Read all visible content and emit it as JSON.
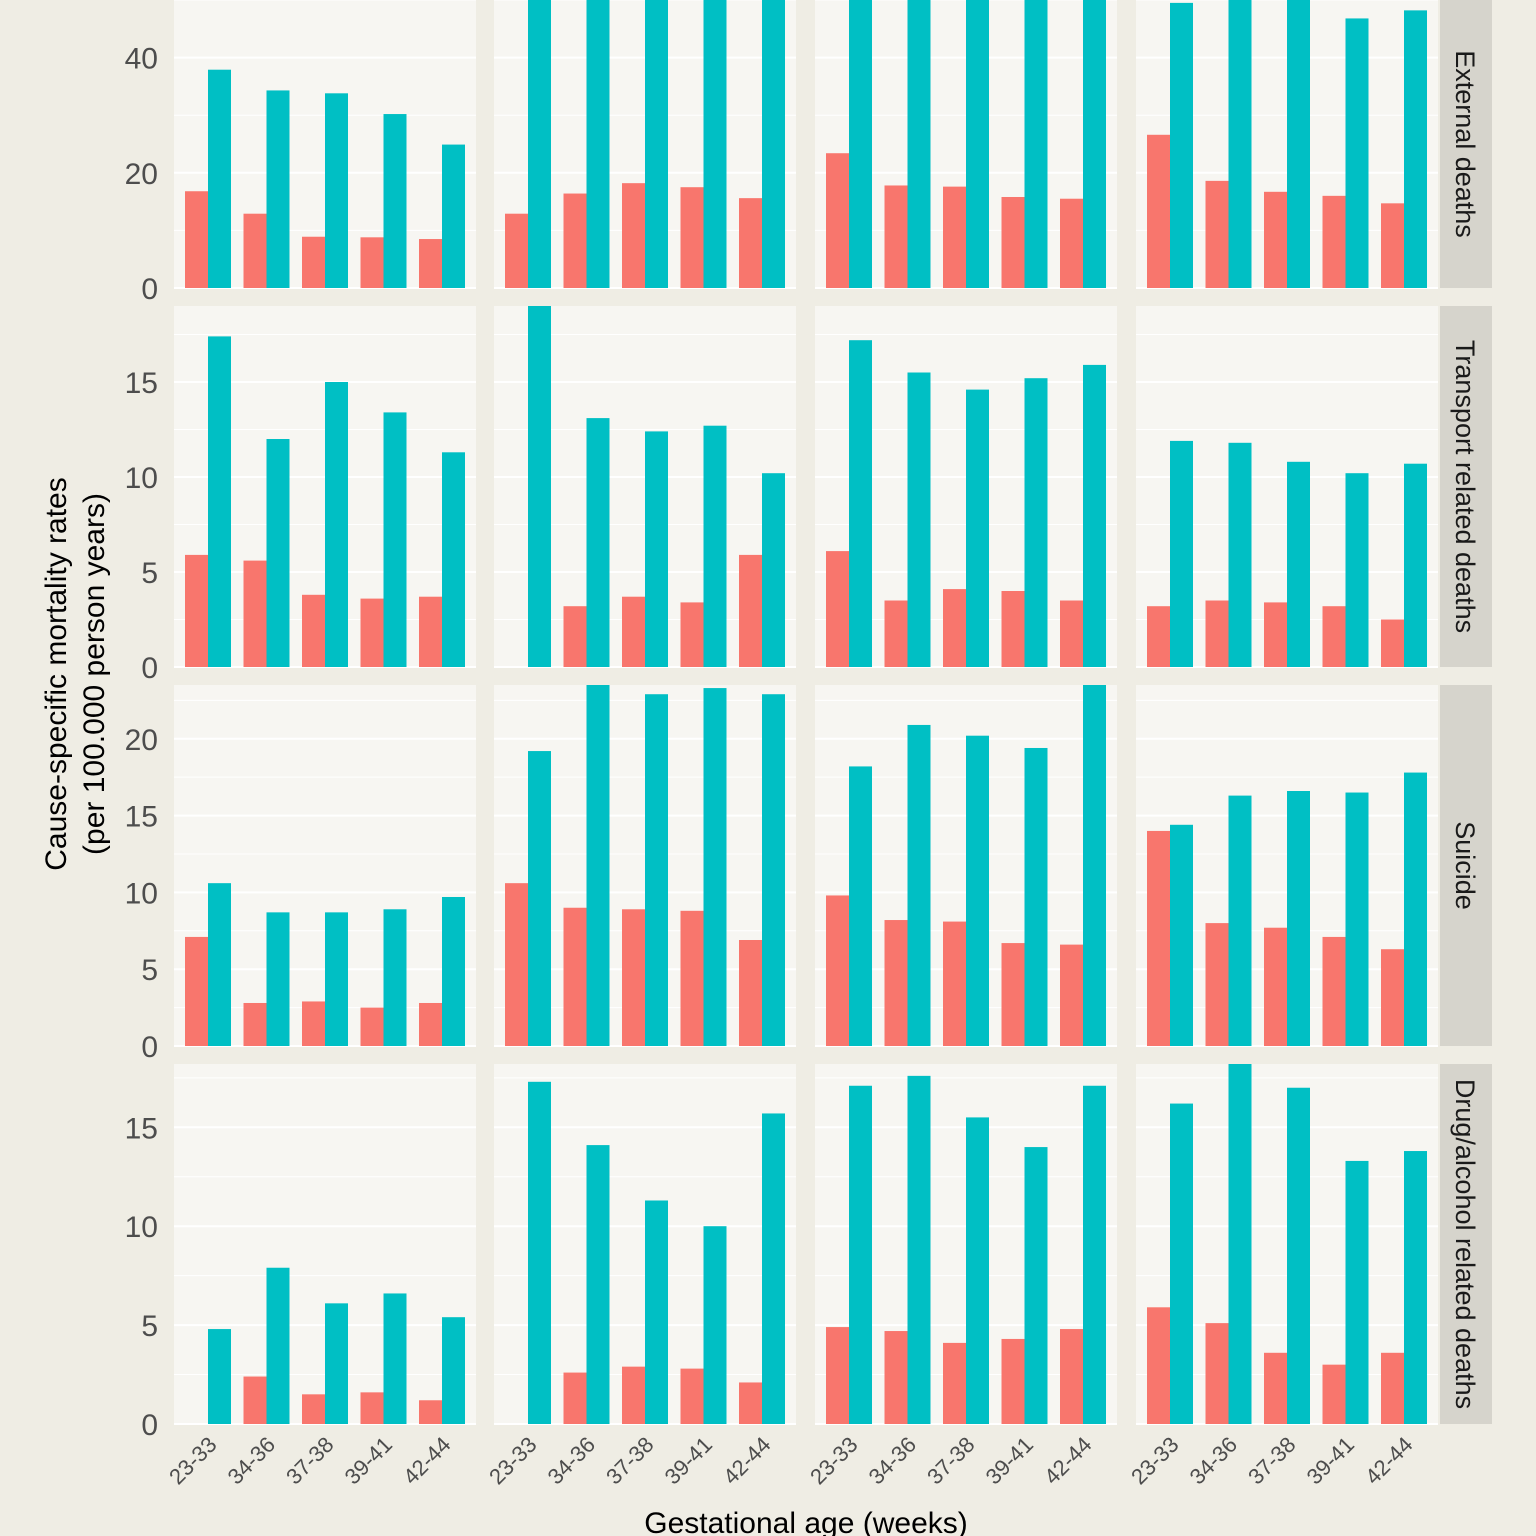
{
  "chart_data": {
    "type": "bar",
    "layout": "facet-grid",
    "xlabel": "Gestational age (weeks)",
    "ylabel": [
      "Cause-specific mortality rates",
      "(per 100.000 person years)"
    ],
    "categories": [
      "23-33",
      "34-36",
      "37-38",
      "39-41",
      "42-44"
    ],
    "colors": {
      "series_1": "#f8766d",
      "series_2": "#00bfc4",
      "panel_bg": "#f7f6f2",
      "strip_bg": "#d6d4cc",
      "page_bg": "#efede4"
    },
    "grid": true,
    "legend": "none",
    "rows": [
      {
        "label": "External deaths",
        "ylim": [
          0,
          50
        ],
        "ticks": [
          0,
          20,
          40
        ],
        "panels": [
          {
            "series_1": [
              16.8,
              12.9,
              8.9,
              8.8,
              8.5
            ],
            "series_2": [
              37.9,
              34.3,
              33.8,
              30.2,
              24.9
            ]
          },
          {
            "series_1": [
              12.9,
              16.4,
              18.2,
              17.5,
              15.6
            ],
            "series_2": [
              52,
              52,
              52,
              52,
              52
            ]
          },
          {
            "series_1": [
              23.4,
              17.8,
              17.6,
              15.8,
              15.5
            ],
            "series_2": [
              52,
              52,
              52,
              52,
              52
            ]
          },
          {
            "series_1": [
              26.6,
              18.6,
              16.7,
              16.0,
              14.7
            ],
            "series_2": [
              49.5,
              52,
              52,
              46.8,
              48.2
            ]
          }
        ]
      },
      {
        "label": "Transport related deaths",
        "ylim": [
          0,
          19
        ],
        "ticks": [
          0,
          5,
          10,
          15
        ],
        "panels": [
          {
            "series_1": [
              5.9,
              5.6,
              3.8,
              3.6,
              3.7
            ],
            "series_2": [
              17.4,
              12.0,
              15.0,
              13.4,
              11.3
            ]
          },
          {
            "series_1": [
              0,
              3.2,
              3.7,
              3.4,
              5.9
            ],
            "series_2": [
              19.5,
              13.1,
              12.4,
              12.7,
              10.2
            ]
          },
          {
            "series_1": [
              6.1,
              3.5,
              4.1,
              4.0,
              3.5
            ],
            "series_2": [
              17.2,
              15.5,
              14.6,
              15.2,
              15.9
            ]
          },
          {
            "series_1": [
              3.2,
              3.5,
              3.4,
              3.2,
              2.5
            ],
            "series_2": [
              11.9,
              11.8,
              10.8,
              10.2,
              10.7
            ]
          }
        ]
      },
      {
        "label": "Suicide",
        "ylim": [
          0,
          23.5
        ],
        "ticks": [
          0,
          5,
          10,
          15,
          20
        ],
        "panels": [
          {
            "series_1": [
              7.1,
              2.8,
              2.9,
              2.5,
              2.8
            ],
            "series_2": [
              10.6,
              8.7,
              8.7,
              8.9,
              9.7
            ]
          },
          {
            "series_1": [
              10.6,
              9.0,
              8.9,
              8.8,
              6.9
            ],
            "series_2": [
              19.2,
              24,
              22.9,
              23.3,
              22.9
            ]
          },
          {
            "series_1": [
              9.8,
              8.2,
              8.1,
              6.7,
              6.6
            ],
            "series_2": [
              18.2,
              20.9,
              20.2,
              19.4,
              24
            ]
          },
          {
            "series_1": [
              14.0,
              8.0,
              7.7,
              7.1,
              6.3
            ],
            "series_2": [
              14.4,
              16.3,
              16.6,
              16.5,
              17.8
            ]
          }
        ]
      },
      {
        "label": "Drug/alcohol related deaths",
        "ylim": [
          0,
          18.2
        ],
        "ticks": [
          0,
          5,
          10,
          15
        ],
        "panels": [
          {
            "series_1": [
              0,
              2.4,
              1.5,
              1.6,
              1.2
            ],
            "series_2": [
              4.8,
              7.9,
              6.1,
              6.6,
              5.4
            ]
          },
          {
            "series_1": [
              0,
              2.6,
              2.9,
              2.8,
              2.1
            ],
            "series_2": [
              17.3,
              14.1,
              11.3,
              10.0,
              15.7
            ]
          },
          {
            "series_1": [
              4.9,
              4.7,
              4.1,
              4.3,
              4.8
            ],
            "series_2": [
              17.1,
              17.6,
              15.5,
              14.0,
              17.1
            ]
          },
          {
            "series_1": [
              5.9,
              5.1,
              3.6,
              3.0,
              3.6
            ],
            "series_2": [
              16.2,
              18.5,
              17.0,
              13.3,
              13.8
            ]
          }
        ]
      }
    ]
  }
}
